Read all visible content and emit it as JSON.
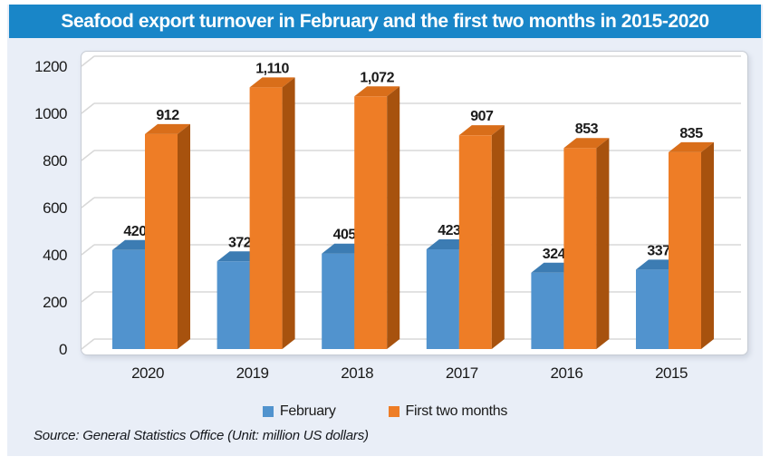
{
  "header": {
    "title": "Seafood export turnover in February and the first two months in 2015-2020"
  },
  "chart_data": {
    "type": "bar",
    "style": "3d-clustered",
    "title": "Seafood export turnover in February and the first two months in 2015-2020",
    "categories": [
      "2020",
      "2019",
      "2018",
      "2017",
      "2016",
      "2015"
    ],
    "series": [
      {
        "name": "February",
        "values": [
          420,
          372,
          405,
          423,
          324,
          337
        ],
        "color_front": "#5193CE",
        "color_top": "#3C7CB3",
        "color_side": "#346C9E"
      },
      {
        "name": "First two months",
        "values": [
          912,
          1110,
          1072,
          907,
          853,
          835
        ],
        "color_front": "#EE7D26",
        "color_top": "#D96E1A",
        "color_side": "#A7520E"
      }
    ],
    "xlabel": "",
    "ylabel": "",
    "ylim": [
      0,
      1200
    ],
    "yticks": [
      0,
      200,
      400,
      600,
      800,
      1000,
      1200
    ],
    "grid": true,
    "value_labels": true,
    "legend_position": "bottom"
  },
  "legend": {
    "items": [
      {
        "label": "February",
        "color": "#5193CE"
      },
      {
        "label": "First two months",
        "color": "#EE7D26"
      }
    ]
  },
  "source": {
    "text": "Source: General Statistics Office (Unit: million US dollars)"
  },
  "colors": {
    "title_bar": "#1986C8",
    "panel_background": "#E9EEF7",
    "plot_background": "#FFFFFF",
    "gridline": "#D8D8D8",
    "label_text": "#1a1a1a"
  }
}
